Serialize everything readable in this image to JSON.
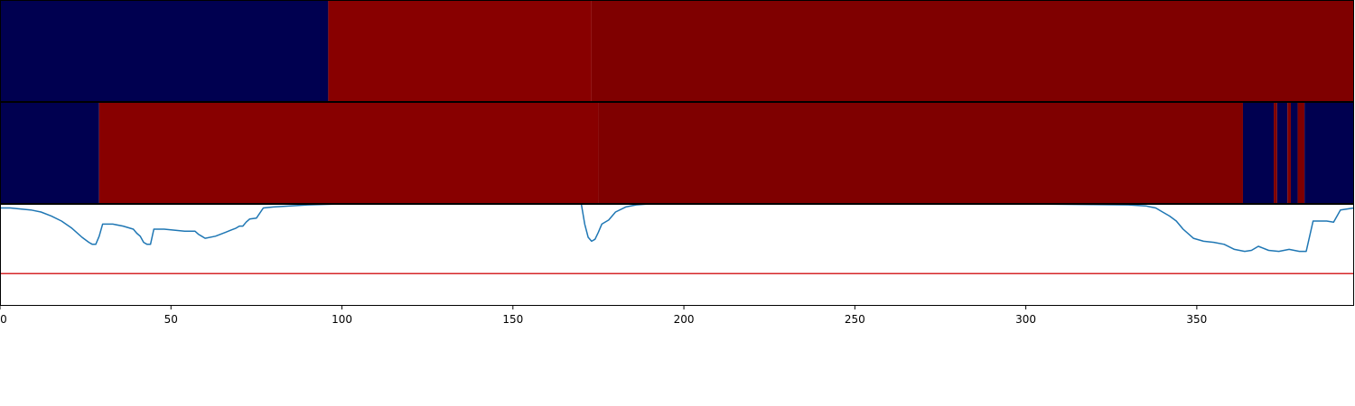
{
  "chart_data": {
    "type": "heatmap",
    "x_range": [
      0,
      396
    ],
    "x_ticks": [
      0,
      50,
      100,
      150,
      200,
      250,
      300,
      350
    ],
    "colors": {
      "class_0": "#000050",
      "class_1": "#880000",
      "class_2": "#7f0000",
      "line": "#1f77b4",
      "threshold": "#d62728"
    },
    "rows": [
      {
        "segments": [
          {
            "start": 0,
            "end": 96,
            "class": "class_0"
          },
          {
            "start": 96,
            "end": 173,
            "class": "class_1"
          },
          {
            "start": 173,
            "end": 396,
            "class": "class_2"
          }
        ]
      },
      {
        "segments": [
          {
            "start": 0,
            "end": 29,
            "class": "class_0"
          },
          {
            "start": 29,
            "end": 175,
            "class": "class_1"
          },
          {
            "start": 175,
            "end": 363.5,
            "class": "class_2"
          },
          {
            "start": 363.5,
            "end": 372.5,
            "class": "class_0"
          },
          {
            "start": 372.5,
            "end": 373.5,
            "class": "class_2"
          },
          {
            "start": 373.5,
            "end": 376.5,
            "class": "class_0"
          },
          {
            "start": 376.5,
            "end": 377.5,
            "class": "class_2"
          },
          {
            "start": 377.5,
            "end": 379.5,
            "class": "class_0"
          },
          {
            "start": 379.5,
            "end": 381.5,
            "class": "class_2"
          },
          {
            "start": 381.5,
            "end": 396,
            "class": "class_0"
          }
        ]
      }
    ],
    "line_panel": {
      "ylim": [
        0,
        1
      ],
      "threshold": 0.31,
      "x": [
        0,
        3,
        6,
        9,
        12,
        15,
        18,
        21,
        24,
        26,
        27,
        28,
        29,
        30,
        33,
        36,
        39,
        40,
        41,
        42,
        43,
        44,
        45,
        48,
        51,
        54,
        57,
        58,
        59,
        60,
        63,
        66,
        69,
        70,
        71,
        72,
        73,
        75,
        77,
        80,
        85,
        90,
        100,
        120,
        150,
        170,
        171,
        172,
        173,
        174,
        175,
        176,
        178,
        180,
        183,
        186,
        190,
        200,
        250,
        300,
        330,
        335,
        338,
        340,
        342,
        344,
        346,
        349,
        352,
        355,
        358,
        361,
        364,
        366,
        368,
        371,
        374,
        377,
        380,
        382,
        384,
        388,
        390,
        392,
        394,
        396
      ],
      "y": [
        0.96,
        0.96,
        0.95,
        0.94,
        0.92,
        0.88,
        0.83,
        0.76,
        0.67,
        0.62,
        0.6,
        0.6,
        0.68,
        0.8,
        0.8,
        0.78,
        0.75,
        0.71,
        0.68,
        0.62,
        0.6,
        0.6,
        0.75,
        0.75,
        0.74,
        0.73,
        0.73,
        0.7,
        0.68,
        0.66,
        0.68,
        0.72,
        0.76,
        0.78,
        0.78,
        0.82,
        0.85,
        0.86,
        0.96,
        0.97,
        0.98,
        0.99,
        1.0,
        1.0,
        1.0,
        1.0,
        0.8,
        0.67,
        0.63,
        0.65,
        0.72,
        0.8,
        0.84,
        0.92,
        0.97,
        0.99,
        1.0,
        1.0,
        1.0,
        1.0,
        0.99,
        0.98,
        0.96,
        0.92,
        0.88,
        0.83,
        0.75,
        0.66,
        0.63,
        0.62,
        0.6,
        0.55,
        0.53,
        0.54,
        0.58,
        0.54,
        0.53,
        0.55,
        0.53,
        0.53,
        0.83,
        0.83,
        0.82,
        0.94,
        0.95,
        0.96
      ]
    }
  }
}
